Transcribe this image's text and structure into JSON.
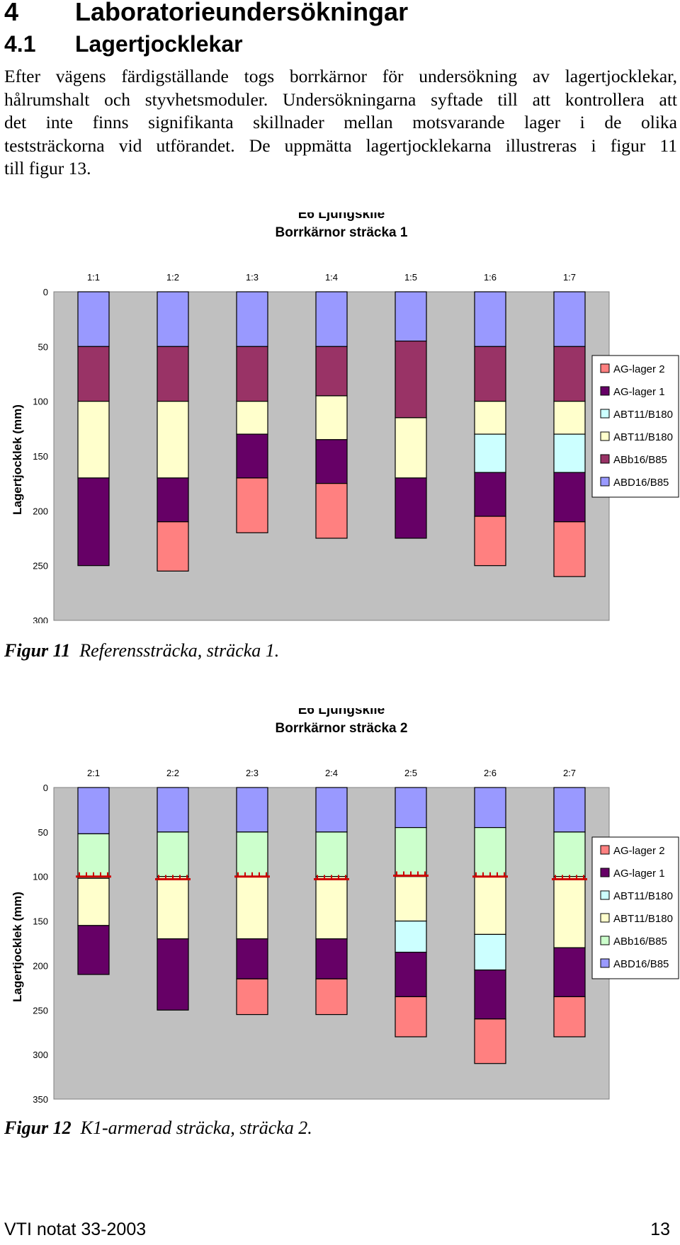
{
  "heading1": {
    "number": "4",
    "title": "Laboratorieundersökningar"
  },
  "heading2": {
    "number": "4.1",
    "title": "Lagertjocklekar"
  },
  "paragraph": [
    "Efter vägens färdigställande togs borrkärnor för undersökning av lagertjocklekar,",
    "hålrumshalt och styvhetsmoduler. Undersökningarna syftade till att kontrollera att",
    "det inte finns signifikanta skillnader mellan motsvarande lager i de olika",
    "teststräckorna vid utförandet. De uppmätta lagertjocklekarna illustreras i figur 11",
    "till figur 13."
  ],
  "chart_data": [
    {
      "type": "bar",
      "stacked": true,
      "y_axis_inverted": true,
      "title": "E6 Ljungskile",
      "subtitle": "Borrkärnor sträcka 1",
      "ylabel": "Lagertjocklek (mm)",
      "xlabel": "",
      "ylim": [
        0,
        300
      ],
      "yticks": [
        0,
        50,
        100,
        150,
        200,
        250,
        300
      ],
      "categories": [
        "1:1",
        "1:2",
        "1:3",
        "1:4",
        "1:5",
        "1:6",
        "1:7"
      ],
      "legend_position": "right",
      "legend": [
        "AG-lager 2",
        "AG-lager 1",
        "ABT11/B180",
        "ABT11/B180",
        "ABb16/B85",
        "ABD16/B85"
      ],
      "series": [
        {
          "name": "ABD16/B85",
          "color": "#9999ff",
          "values": [
            50,
            50,
            50,
            50,
            45,
            50,
            50
          ]
        },
        {
          "name": "ABb16/B85",
          "color": "#993366",
          "values": [
            50,
            50,
            50,
            45,
            70,
            50,
            50
          ]
        },
        {
          "name": "ABT11/B180",
          "color": "#ffffcc",
          "values": [
            70,
            70,
            30,
            40,
            55,
            30,
            30
          ]
        },
        {
          "name": "ABT11/B180",
          "color": "#ccffff",
          "values": [
            0,
            0,
            0,
            0,
            0,
            35,
            35
          ]
        },
        {
          "name": "AG-lager 1",
          "color": "#660066",
          "values": [
            80,
            40,
            40,
            40,
            55,
            40,
            45
          ]
        },
        {
          "name": "AG-lager 2",
          "color": "#ff8080",
          "values": [
            0,
            45,
            50,
            50,
            0,
            45,
            50
          ]
        }
      ]
    },
    {
      "type": "bar",
      "stacked": true,
      "y_axis_inverted": true,
      "title": "E6 Ljungskile",
      "subtitle": "Borrkärnor sträcka 2",
      "ylabel": "Lagertjocklek (mm)",
      "xlabel": "",
      "ylim": [
        0,
        350
      ],
      "yticks": [
        0,
        50,
        100,
        150,
        200,
        250,
        300,
        350
      ],
      "categories": [
        "2:1",
        "2:2",
        "2:3",
        "2:4",
        "2:5",
        "2:6",
        "2:7"
      ],
      "legend_position": "right",
      "legend": [
        "AG-lager 2",
        "AG-lager 1",
        "ABT11/B180",
        "ABT11/B180",
        "ABb16/B85",
        "ABD16/B85"
      ],
      "reinforcement_depths": [
        100,
        103,
        100,
        103,
        99,
        100,
        103
      ],
      "series": [
        {
          "name": "ABD16/B85",
          "color": "#9999ff",
          "values": [
            52,
            50,
            50,
            50,
            45,
            45,
            50
          ]
        },
        {
          "name": "ABb16/B85",
          "color": "#ccffcc",
          "values": [
            50,
            50,
            50,
            50,
            55,
            55,
            50
          ]
        },
        {
          "name": "ABT11/B180",
          "color": "#ffffcc",
          "values": [
            53,
            70,
            70,
            70,
            50,
            65,
            80
          ]
        },
        {
          "name": "ABT11/B180",
          "color": "#ccffff",
          "values": [
            0,
            0,
            0,
            0,
            35,
            40,
            0
          ]
        },
        {
          "name": "AG-lager 1",
          "color": "#660066",
          "values": [
            55,
            80,
            45,
            45,
            50,
            55,
            55
          ]
        },
        {
          "name": "AG-lager 2",
          "color": "#ff8080",
          "values": [
            0,
            0,
            40,
            40,
            45,
            50,
            45
          ]
        }
      ]
    }
  ],
  "captions": [
    {
      "label": "Figur 11",
      "text": "Referenssträcka, sträcka 1."
    },
    {
      "label": "Figur 12",
      "text": "K1-armerad sträcka, sträcka 2."
    }
  ],
  "footer": {
    "left": "VTI notat 33-2003",
    "right": "13"
  },
  "colors": {
    "plot_bg": "#c0c0c0",
    "reinforcement": "#cc0000"
  }
}
